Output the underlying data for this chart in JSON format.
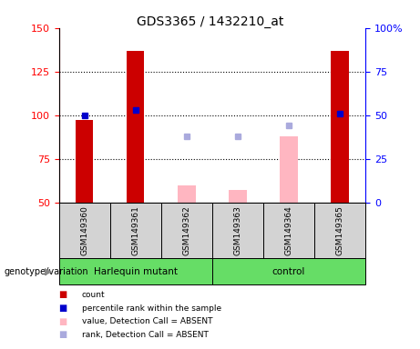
{
  "title": "GDS3365 / 1432210_at",
  "samples": [
    "GSM149360",
    "GSM149361",
    "GSM149362",
    "GSM149363",
    "GSM149364",
    "GSM149365"
  ],
  "left_ylim": [
    50,
    150
  ],
  "right_ylim": [
    0,
    100
  ],
  "left_yticks": [
    50,
    75,
    100,
    125,
    150
  ],
  "right_yticks": [
    0,
    25,
    50,
    75,
    100
  ],
  "count_values": [
    97,
    137,
    null,
    null,
    null,
    137
  ],
  "rank_values": [
    100,
    103,
    null,
    null,
    null,
    101
  ],
  "absent_value_values": [
    null,
    null,
    60,
    57,
    88,
    null
  ],
  "absent_rank_values": [
    null,
    null,
    88,
    88,
    94,
    null
  ],
  "count_color": "#CC0000",
  "rank_color": "#0000CC",
  "absent_value_color": "#FFB6C1",
  "absent_rank_color": "#AAAADD",
  "background_color": "#ffffff",
  "sample_bg_color": "#D3D3D3",
  "group_bg_color": "#66DD66",
  "genotype_label": "genotype/variation",
  "harlequin_label": "Harlequin mutant",
  "control_label": "control",
  "legend_items": [
    {
      "color": "#CC0000",
      "label": "count"
    },
    {
      "color": "#0000CC",
      "label": "percentile rank within the sample"
    },
    {
      "color": "#FFB6C1",
      "label": "value, Detection Call = ABSENT"
    },
    {
      "color": "#AAAADD",
      "label": "rank, Detection Call = ABSENT"
    }
  ]
}
